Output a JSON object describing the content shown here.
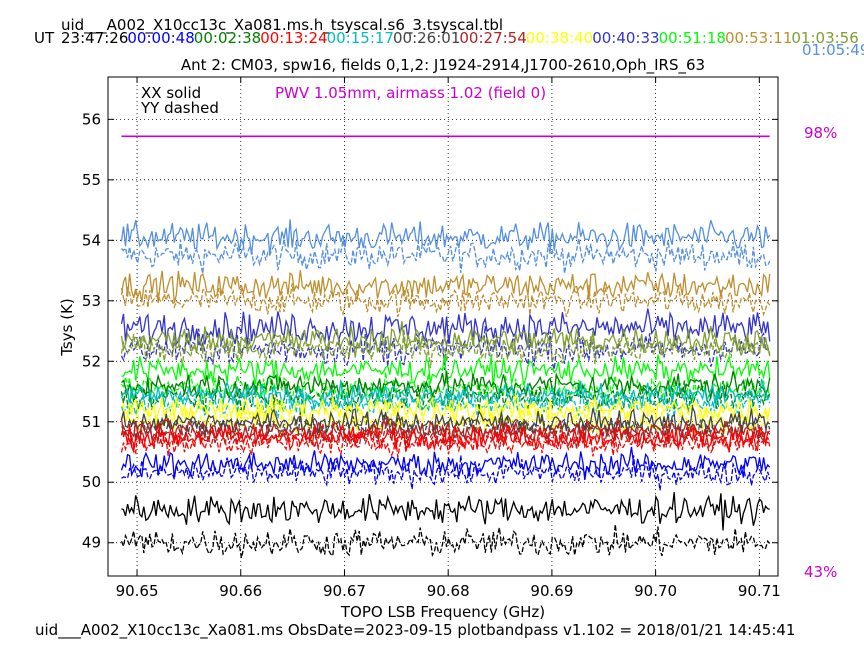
{
  "header": {
    "title": "uid___A002_X10cc13c_Xa081.ms.h_tsyscal.s6_3.tsyscal.tbl",
    "ut_label": "UT",
    "timestamps": [
      {
        "text": "23:47:26",
        "color": "#000000"
      },
      {
        "text": "00:00:48",
        "color": "#0000ff"
      },
      {
        "text": "00:02:38",
        "color": "#008000"
      },
      {
        "text": "00:13:24",
        "color": "#ff0000"
      },
      {
        "text": "00:15:17",
        "color": "#00bfbf"
      },
      {
        "text": "00:26:01",
        "color": "#444444"
      },
      {
        "text": "00:27:54",
        "color": "#b22222"
      },
      {
        "text": "00:38:40",
        "color": "#ffff00"
      },
      {
        "text": "00:40:33",
        "color": "#3333cc"
      },
      {
        "text": "00:51:18",
        "color": "#00ff00"
      },
      {
        "text": "00:53:11",
        "color": "#bf8f2f"
      },
      {
        "text": "01:03:56",
        "color": "#7f9f2f"
      }
    ],
    "timestamp_second_row": {
      "text": "01:05:49",
      "color": "#5490e0"
    },
    "subtitle": "Ant 2: CM03,  spw16,  fields 0,1,2: J1924-2914,J1700-2610,Oph_IRS_63"
  },
  "legend": {
    "xx": "XX solid",
    "yy": "YY dashed"
  },
  "annotation": {
    "pwv": "PWV 1.05mm, airmass 1.02 (field 0)",
    "pwv_color": "#cc00cc",
    "right_top": "98%",
    "right_bottom": "43%"
  },
  "footer": "uid___A002_X10cc13c_Xa081.ms  ObsDate=2023-09-15   plotbandpass v1.102 = 2018/01/21 14:45:41",
  "chart_data": {
    "type": "line",
    "xlabel": "TOPO LSB Frequency (GHz)",
    "ylabel": "Tsys (K)",
    "xlim": [
      90.6472,
      90.7118
    ],
    "ylim": [
      48.45,
      56.7
    ],
    "x_ticks": [
      "90.65",
      "90.66",
      "90.67",
      "90.68",
      "90.69",
      "90.70",
      "90.71"
    ],
    "x_tick_values": [
      90.65,
      90.66,
      90.67,
      90.68,
      90.69,
      90.7,
      90.71
    ],
    "y_ticks": [
      "49",
      "50",
      "51",
      "52",
      "53",
      "54",
      "55",
      "56"
    ],
    "y_tick_values": [
      49,
      50,
      51,
      52,
      53,
      54,
      55,
      56
    ],
    "grid": true,
    "x_range_data": [
      90.6485,
      90.711
    ],
    "pwv_line": {
      "y": 55.72,
      "color": "#cc00cc"
    },
    "series": [
      {
        "color": "#5490e0",
        "xx_mean": 54.05,
        "yy_mean": 53.75,
        "noise": 0.22
      },
      {
        "color": "#bf8f2f",
        "xx_mean": 53.25,
        "yy_mean": 53.0,
        "noise": 0.22
      },
      {
        "color": "#3333cc",
        "xx_mean": 52.55,
        "yy_mean": 52.2,
        "noise": 0.25
      },
      {
        "color": "#7f9f2f",
        "xx_mean": 52.35,
        "yy_mean": 52.2,
        "noise": 0.22
      },
      {
        "color": "#00ff00",
        "xx_mean": 51.85,
        "yy_mean": 51.55,
        "noise": 0.2
      },
      {
        "color": "#008000",
        "xx_mean": 51.6,
        "yy_mean": 51.4,
        "noise": 0.2
      },
      {
        "color": "#00bfbf",
        "xx_mean": 51.45,
        "yy_mean": 51.3,
        "noise": 0.18
      },
      {
        "color": "#ffff00",
        "xx_mean": 51.2,
        "yy_mean": 51.0,
        "noise": 0.2
      },
      {
        "color": "#444444",
        "xx_mean": 51.0,
        "yy_mean": 50.9,
        "noise": 0.18
      },
      {
        "color": "#b22222",
        "xx_mean": 50.85,
        "yy_mean": 50.75,
        "noise": 0.18
      },
      {
        "color": "#ff0000",
        "xx_mean": 50.75,
        "yy_mean": 50.65,
        "noise": 0.18
      },
      {
        "color": "#0000ff",
        "xx_mean": 50.3,
        "yy_mean": 50.15,
        "noise": 0.2
      },
      {
        "color": "#000000",
        "xx_mean": 49.55,
        "yy_mean": 49.0,
        "noise": 0.22
      }
    ]
  }
}
